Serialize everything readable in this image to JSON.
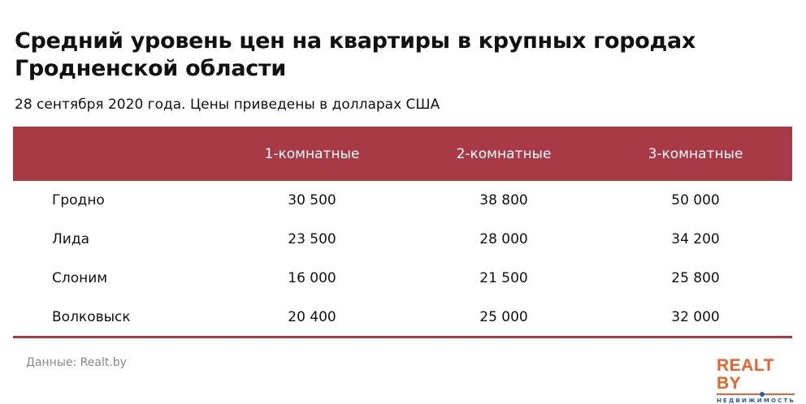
{
  "title": "Средний уровень цен на квартиры в крупных городах Гродненской области",
  "subtitle": "28 сентября 2020 года. Цены приведены в долларах США",
  "table": {
    "headers": [
      "",
      "1-комнатные",
      "2-комнатные",
      "3-комнатные"
    ],
    "rows": [
      [
        "Гродно",
        "30 500",
        "38 800",
        "50 000"
      ],
      [
        "Лида",
        "23 500",
        "28 000",
        "34 200"
      ],
      [
        "Слоним",
        "16 000",
        "21 500",
        "25 800"
      ],
      [
        "Волковыск",
        "20 400",
        "25 000",
        "32 000"
      ]
    ]
  },
  "source": "Данные: Realt.by",
  "logo": {
    "text": "REALT BY",
    "tagline": "НЕДВИЖИМОСТЬ"
  },
  "colors": {
    "accent": "#a83a46",
    "logo_orange": "#e8622c",
    "logo_blue": "#1f5fb0"
  }
}
